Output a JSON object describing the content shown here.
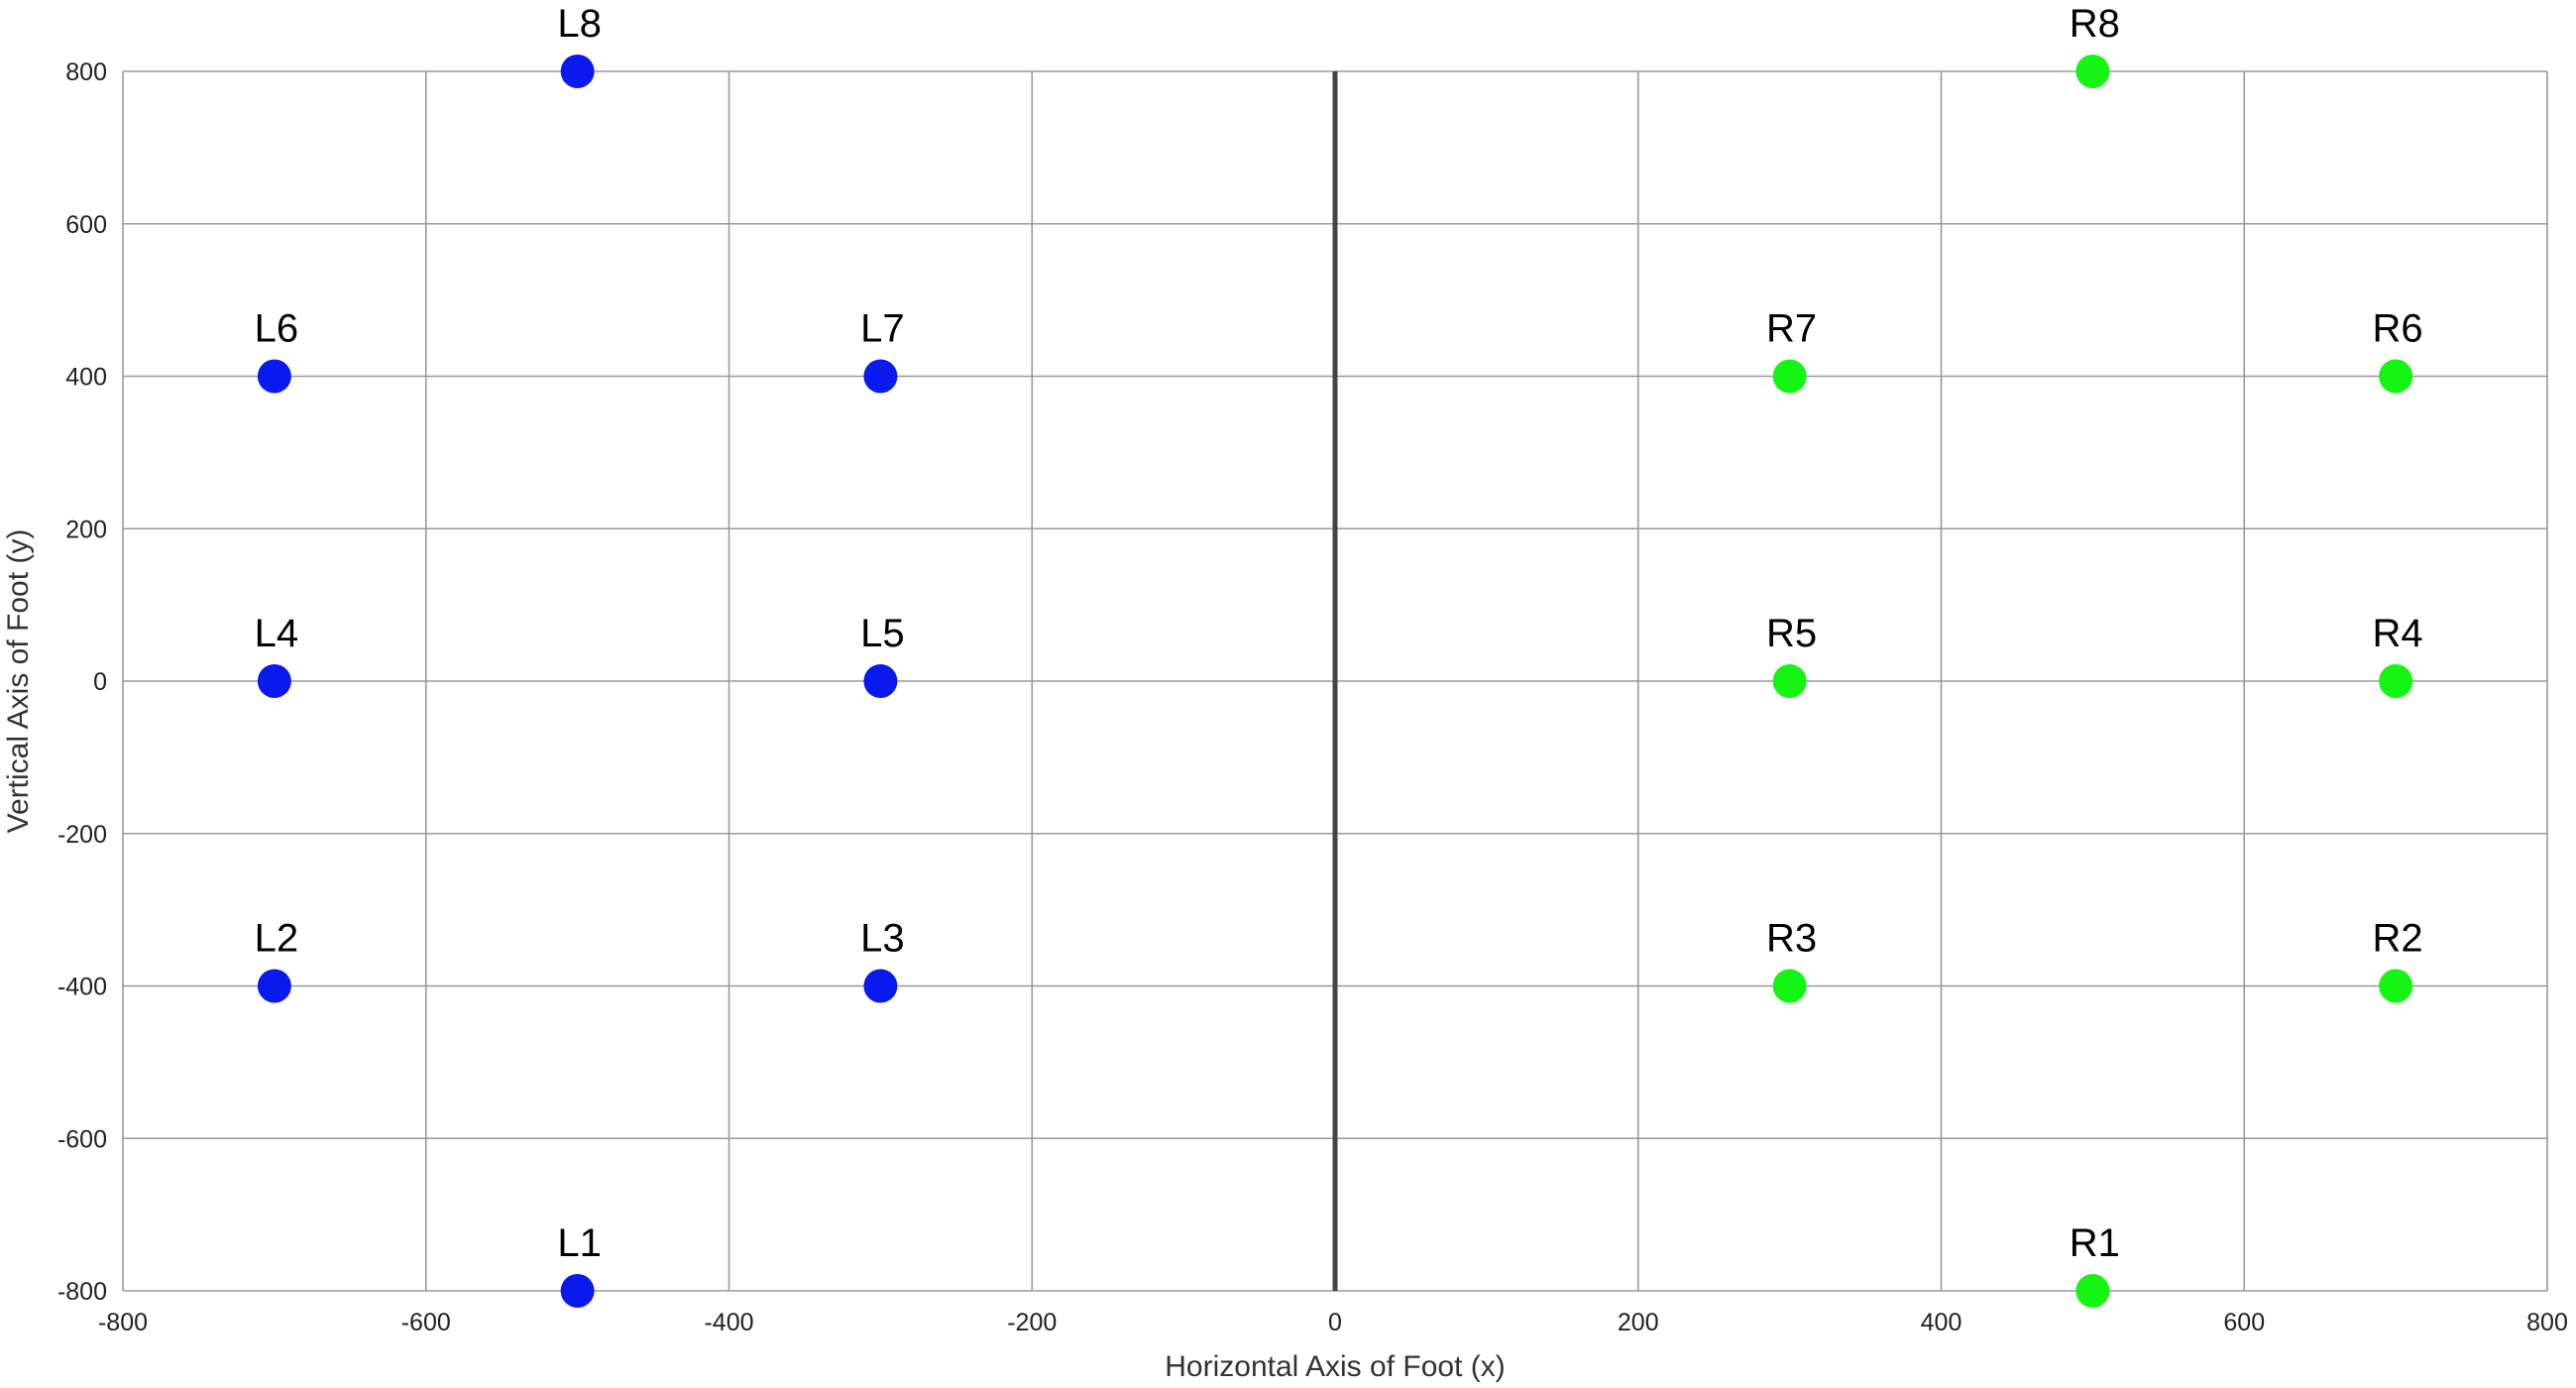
{
  "chart_data": {
    "type": "scatter",
    "xlabel": "Horizontal Axis of Foot (x)",
    "ylabel": "Vertical Axis of Foot (y)",
    "xlim": [
      -800,
      800
    ],
    "ylim": [
      -800,
      800
    ],
    "xticks": [
      -800,
      -600,
      -400,
      -200,
      0,
      200,
      400,
      600,
      800
    ],
    "yticks": [
      -800,
      -600,
      -400,
      -200,
      0,
      200,
      400,
      600,
      800
    ],
    "grid": true,
    "center_line_x": 0,
    "series": [
      {
        "color": "#0a1aef",
        "points": [
          {
            "label": "L1",
            "x": -500,
            "y": -800
          },
          {
            "label": "L2",
            "x": -700,
            "y": -400
          },
          {
            "label": "L3",
            "x": -300,
            "y": -400
          },
          {
            "label": "L4",
            "x": -700,
            "y": 0
          },
          {
            "label": "L5",
            "x": -300,
            "y": 0
          },
          {
            "label": "L6",
            "x": -700,
            "y": 400
          },
          {
            "label": "L7",
            "x": -300,
            "y": 400
          },
          {
            "label": "L8",
            "x": -500,
            "y": 800
          }
        ]
      },
      {
        "color": "#14f514",
        "points": [
          {
            "label": "R1",
            "x": 500,
            "y": -800
          },
          {
            "label": "R2",
            "x": 700,
            "y": -400
          },
          {
            "label": "R3",
            "x": 300,
            "y": -400
          },
          {
            "label": "R4",
            "x": 700,
            "y": 0
          },
          {
            "label": "R5",
            "x": 300,
            "y": 0
          },
          {
            "label": "R6",
            "x": 700,
            "y": 400
          },
          {
            "label": "R7",
            "x": 300,
            "y": 400
          },
          {
            "label": "R8",
            "x": 500,
            "y": 800
          }
        ]
      }
    ]
  }
}
